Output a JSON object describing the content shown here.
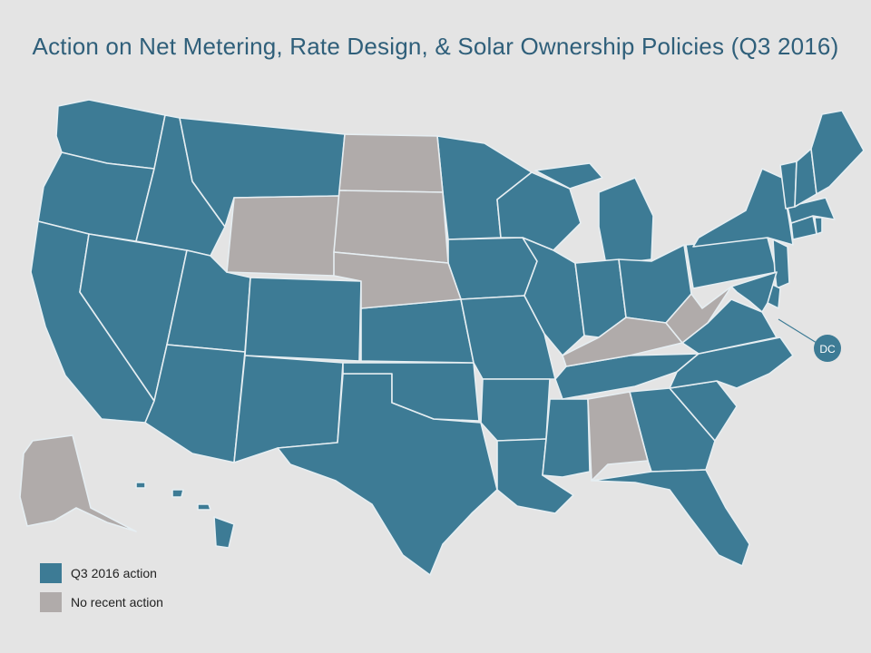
{
  "title": "Action on Net Metering, Rate Design, & Solar Ownership Policies (Q3 2016)",
  "colors": {
    "action": "#3d7b95",
    "no_action": "#b0abaa",
    "background": "#e4e4e4",
    "border": "#e6eef2"
  },
  "legend": {
    "action_label": "Q3 2016 action",
    "no_action_label": "No recent action"
  },
  "dc_label": "DC",
  "states": {
    "action": [
      "WA",
      "OR",
      "CA",
      "NV",
      "ID",
      "MT",
      "UT",
      "AZ",
      "CO",
      "NM",
      "TX",
      "OK",
      "KS",
      "MN",
      "IA",
      "MO",
      "AR",
      "LA",
      "WI",
      "IL",
      "MI",
      "IN",
      "OH",
      "MS",
      "TN",
      "GA",
      "FL",
      "SC",
      "NC",
      "VA",
      "PA",
      "NY",
      "NJ",
      "DE",
      "MD",
      "CT",
      "RI",
      "MA",
      "VT",
      "NH",
      "ME",
      "HI",
      "DC"
    ],
    "no_action": [
      "WY",
      "ND",
      "SD",
      "NE",
      "KY",
      "WV",
      "AL",
      "AK"
    ]
  }
}
